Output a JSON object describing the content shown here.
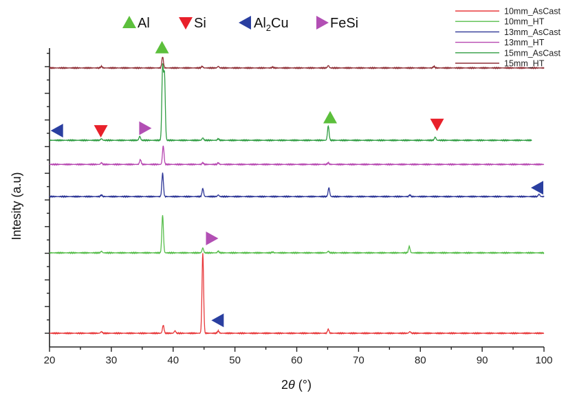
{
  "chart_data": {
    "type": "line",
    "xlabel": "2θ (°)",
    "xlabel_main": "2",
    "xlabel_italic": "θ",
    "xlabel_unit": " (°)",
    "ylabel": "Intesity (a.u)",
    "xlim": [
      20,
      100
    ],
    "xticks": [
      20,
      30,
      40,
      50,
      60,
      70,
      80,
      90,
      100
    ],
    "y_tick_labels_shown": false,
    "grid": false,
    "legend_position": "top-right",
    "phase_legend": [
      {
        "label": "Al",
        "marker": "triangle-up",
        "color": "#5cbf3c"
      },
      {
        "label": "Si",
        "marker": "triangle-down",
        "color": "#e8202a"
      },
      {
        "label": "Al2Cu",
        "label_main": "Al",
        "label_sub": "2",
        "label_tail": "Cu",
        "marker": "triangle-left",
        "color": "#2a3fa0"
      },
      {
        "label": "FeSi",
        "marker": "triangle-right",
        "color": "#b24fb4"
      }
    ],
    "series": [
      {
        "name": "10mm_AsCast",
        "color": "#e8383a",
        "baseline": 0.0,
        "x_end": 100,
        "peaks": [
          [
            28.4,
            0.02
          ],
          [
            38.4,
            0.1
          ],
          [
            40.3,
            0.03
          ],
          [
            44.8,
            1.0
          ],
          [
            47.3,
            0.03
          ],
          [
            65.1,
            0.05
          ],
          [
            78.3,
            0.02
          ]
        ]
      },
      {
        "name": "10mm_HT",
        "color": "#56bd4a",
        "baseline": 1.0,
        "x_end": 100,
        "peaks": [
          [
            28.4,
            0.02
          ],
          [
            38.3,
            0.47
          ],
          [
            44.8,
            0.06
          ],
          [
            47.3,
            0.02
          ],
          [
            56.1,
            0.01
          ],
          [
            65.1,
            0.02
          ],
          [
            78.2,
            0.08
          ]
        ]
      },
      {
        "name": "13mm_AsCast",
        "color": "#2c3596",
        "baseline": 1.7,
        "x_end": 100,
        "peaks": [
          [
            28.4,
            0.02
          ],
          [
            38.3,
            0.29
          ],
          [
            44.8,
            0.1
          ],
          [
            47.3,
            0.02
          ],
          [
            65.2,
            0.11
          ],
          [
            78.3,
            0.02
          ],
          [
            99.2,
            0.03
          ]
        ]
      },
      {
        "name": "13mm_HT",
        "color": "#b645b0",
        "baseline": 2.1,
        "x_end": 100,
        "peaks": [
          [
            28.4,
            0.02
          ],
          [
            34.7,
            0.06
          ],
          [
            38.4,
            0.23
          ],
          [
            44.8,
            0.02
          ],
          [
            47.3,
            0.02
          ],
          [
            65.1,
            0.02
          ]
        ]
      },
      {
        "name": "15mm_AsCast",
        "color": "#2e9c41",
        "baseline": 2.4,
        "x_end": 98,
        "peaks": [
          [
            28.4,
            0.02
          ],
          [
            34.6,
            0.05
          ],
          [
            38.3,
            0.9
          ],
          [
            38.6,
            0.8
          ],
          [
            44.8,
            0.03
          ],
          [
            47.3,
            0.02
          ],
          [
            65.1,
            0.18
          ],
          [
            82.4,
            0.04
          ]
        ]
      },
      {
        "name": "15mm_HT",
        "color": "#8f2f36",
        "baseline": 3.3,
        "x_end": 100,
        "peaks": [
          [
            28.4,
            0.02
          ],
          [
            38.3,
            0.14
          ],
          [
            44.7,
            0.02
          ],
          [
            47.3,
            0.02
          ],
          [
            56.1,
            0.01
          ],
          [
            65.1,
            0.03
          ],
          [
            82.2,
            0.02
          ]
        ]
      }
    ],
    "phase_annotations": [
      {
        "phase": "Al",
        "x": 38.2,
        "level": 3.55
      },
      {
        "phase": "Al",
        "x": 65.4,
        "level": 2.68
      },
      {
        "phase": "Si",
        "x": 28.3,
        "level": 2.52
      },
      {
        "phase": "Si",
        "x": 82.7,
        "level": 2.6
      },
      {
        "phase": "FeSi",
        "x": 35.4,
        "level": 2.55
      },
      {
        "phase": "FeSi",
        "x": 46.2,
        "level": 1.18
      },
      {
        "phase": "Al2Cu",
        "x": 21.3,
        "level": 2.52
      },
      {
        "phase": "Al2Cu",
        "x": 99.0,
        "level": 1.81
      },
      {
        "phase": "Al2Cu",
        "x": 47.3,
        "level": 0.16
      }
    ]
  }
}
